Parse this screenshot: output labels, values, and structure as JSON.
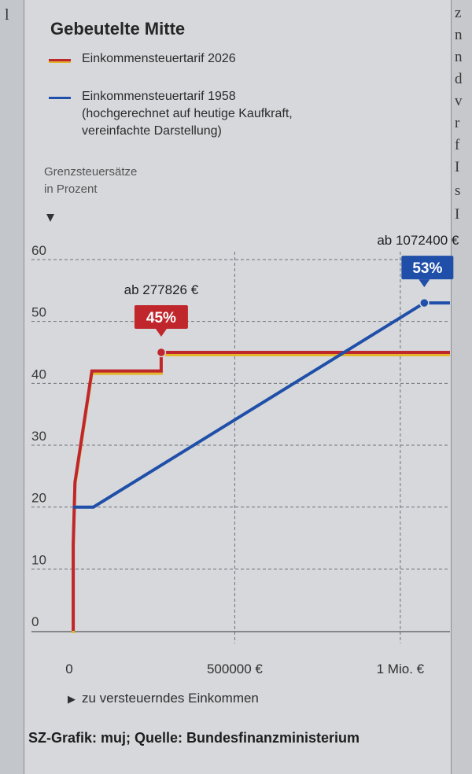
{
  "title": "Gebeutelte Mitte",
  "legend": [
    {
      "lines": [
        "Einkommensteuertarif 2026"
      ],
      "color": "#c0272d"
    },
    {
      "lines": [
        "Einkommensteuertarif 1958",
        "(hochgerechnet auf heutige Kaufkraft,",
        "vereinfachte Darstellung)"
      ],
      "color": "#1f4fa8"
    }
  ],
  "y_axis_label": [
    "Grenzsteuersätze",
    "in Prozent"
  ],
  "x_axis_label": "zu versteuerndes Einkommen",
  "source": "SZ-Grafik: muj; Quelle: Bundesfinanzministerium",
  "side_text": {
    "left": [
      "l"
    ],
    "right": [
      "z",
      "n",
      "n",
      "d",
      "v",
      "r",
      "f",
      "I",
      "s",
      "I"
    ]
  },
  "chart_data": {
    "type": "line",
    "ylim": [
      0,
      60
    ],
    "xlim": [
      0,
      1150000
    ],
    "y_ticks": [
      0,
      10,
      20,
      30,
      40,
      50,
      60
    ],
    "x_ticks": [
      {
        "value": 0,
        "label": "0"
      },
      {
        "value": 500000,
        "label": "500000 €"
      },
      {
        "value": 1000000,
        "label": "1 Mio. €"
      }
    ],
    "series": [
      {
        "name": "Einkommensteuertarif 2026",
        "color": "#c0272d",
        "x": [
          12096,
          12096,
          17443,
          68481,
          277826,
          277826,
          1150000
        ],
        "y": [
          0,
          14,
          24,
          42,
          42,
          45,
          45
        ]
      },
      {
        "name": "Einkommensteuertarif 1958",
        "color": "#1f4fa8",
        "x": [
          12096,
          73000,
          1072400,
          1150000
        ],
        "y": [
          20,
          20,
          53,
          53
        ]
      }
    ],
    "annotations": [
      {
        "x": 277826,
        "y": 45,
        "value_label": "45%",
        "caption": "ab 277826 €",
        "color": "#c0272d"
      },
      {
        "x": 1072400,
        "y": 53,
        "value_label": "53%",
        "caption": "ab 1072400 €",
        "color": "#1f4fa8"
      }
    ]
  }
}
